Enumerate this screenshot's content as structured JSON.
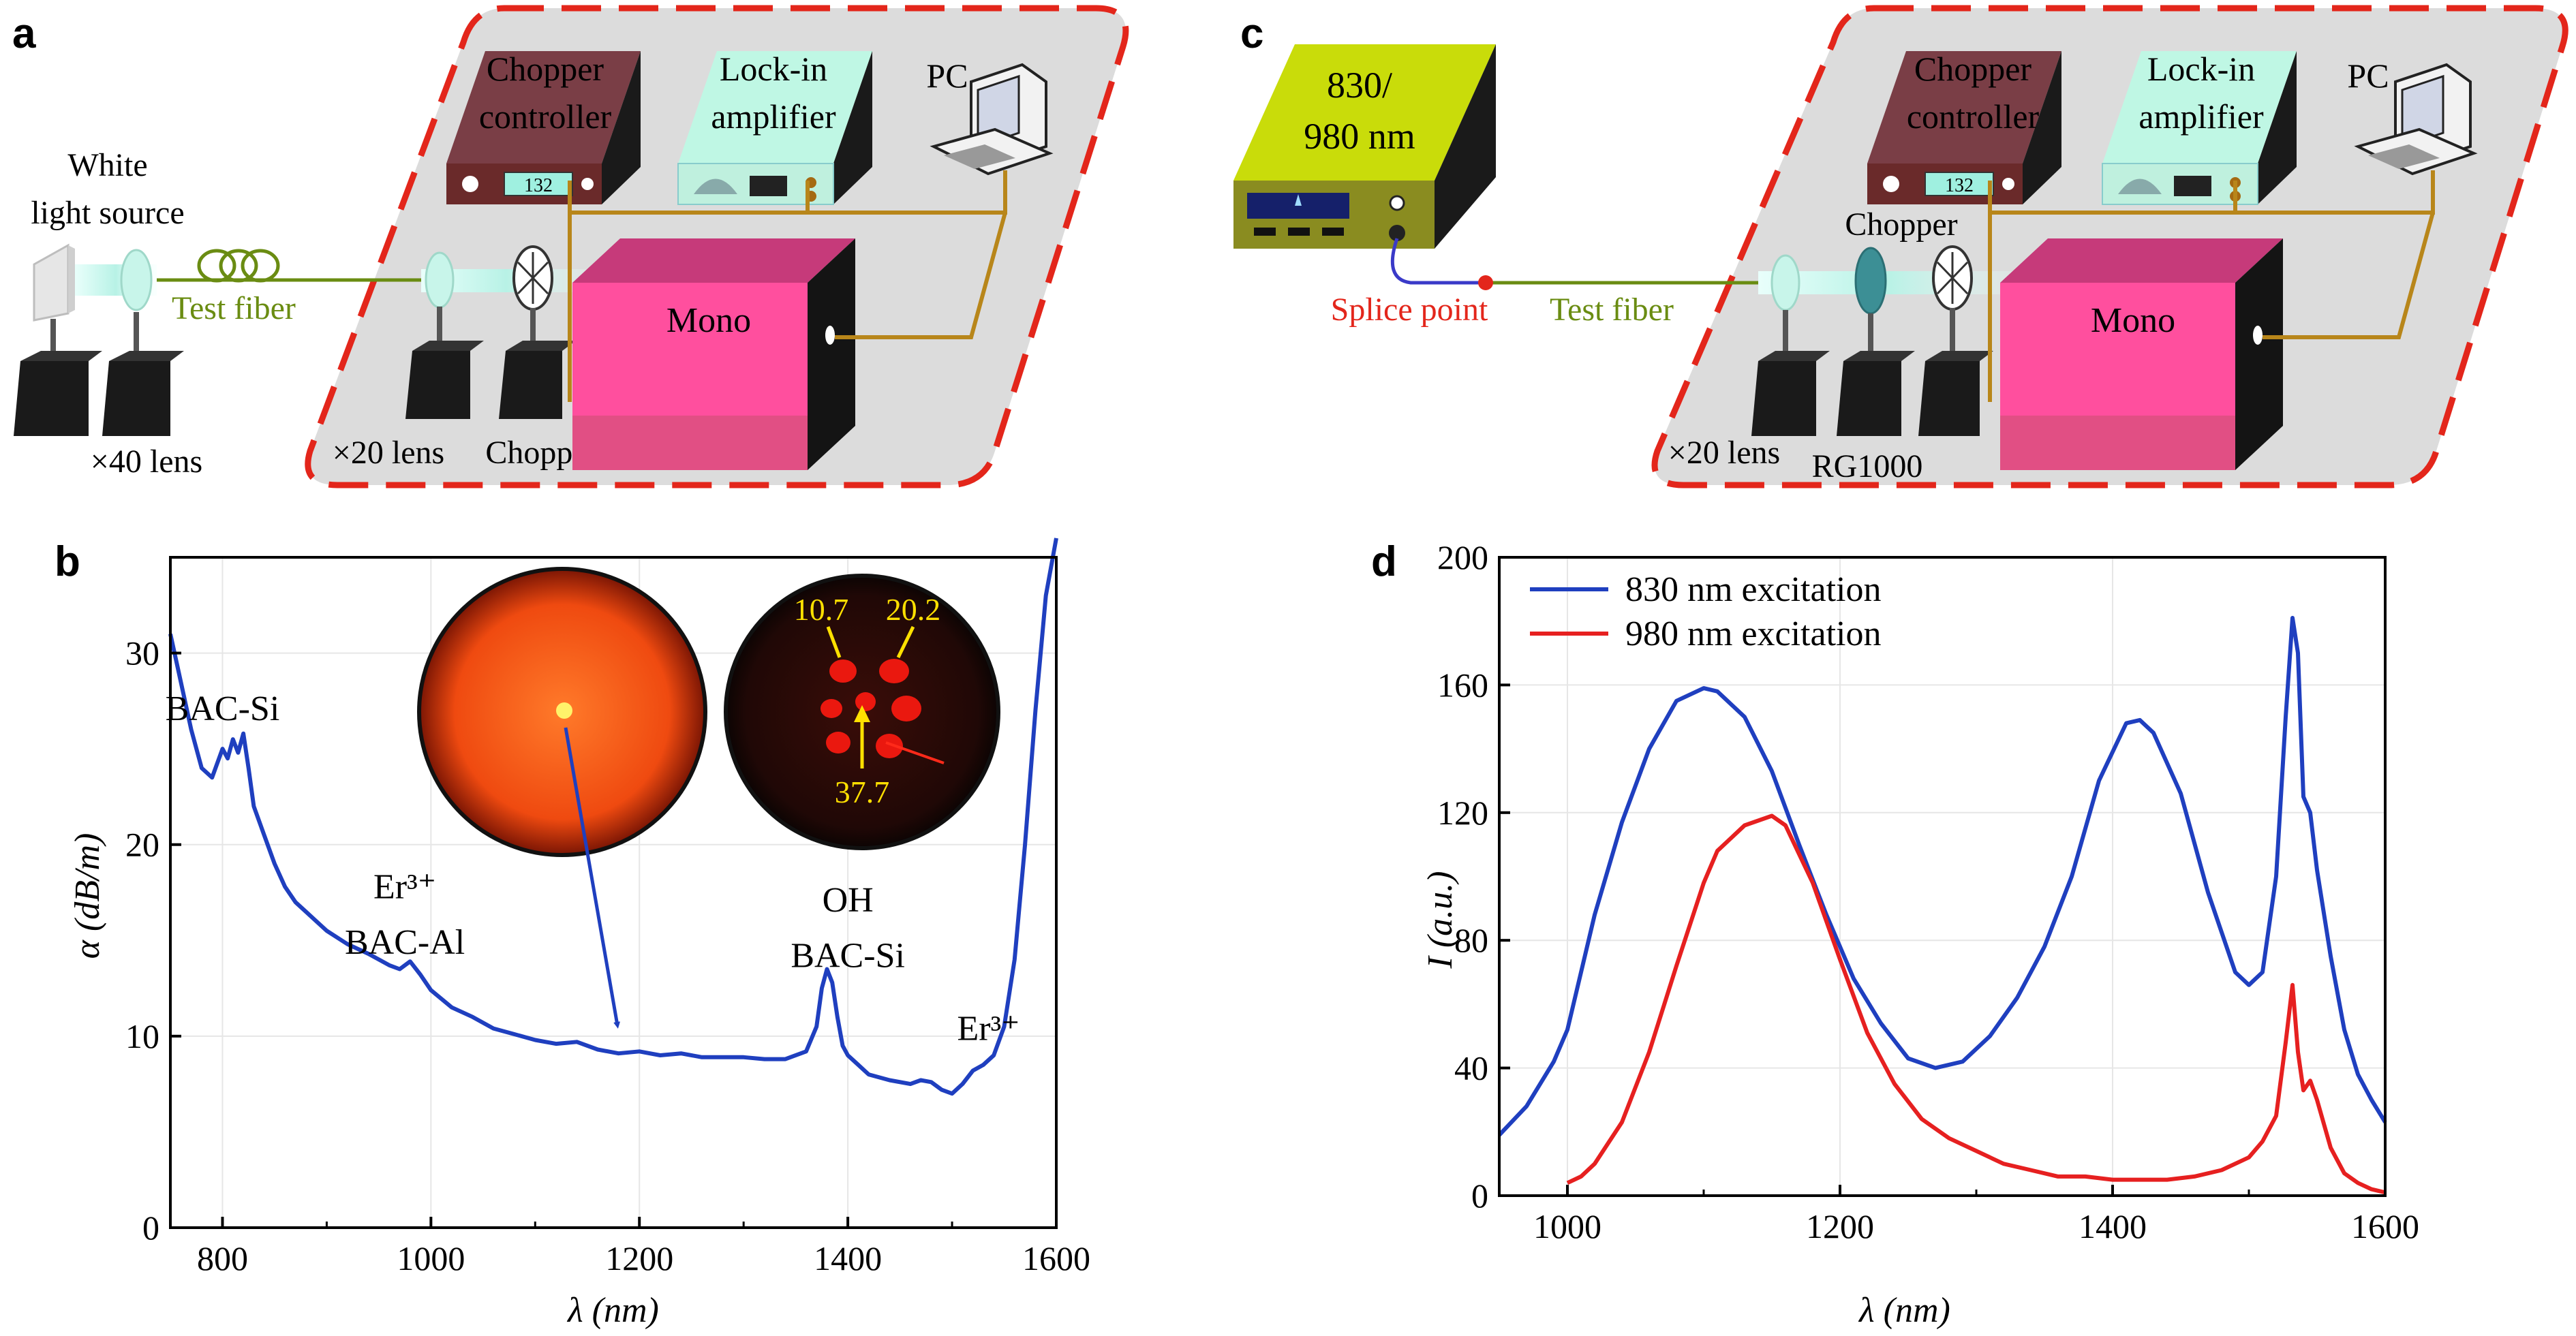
{
  "panels": {
    "a": {
      "letter": "a",
      "white_light_source": [
        "White",
        "light source"
      ],
      "test_fiber": "Test fiber",
      "x40_lens": "×40 lens",
      "x20_lens": "×20 lens",
      "chopper": "Chopper",
      "chopper_controller": [
        "Chopper",
        "controller"
      ],
      "chopper_display": "132",
      "lockin": [
        "Lock-in",
        "amplifier"
      ],
      "pc": "PC",
      "mono": "Mono"
    },
    "c": {
      "letter": "c",
      "source": [
        "830/",
        "980 nm"
      ],
      "splice_point": "Splice point",
      "test_fiber": "Test fiber",
      "x20_lens": "×20 lens",
      "rg1000": "RG1000",
      "chopper": "Chopper",
      "chopper_controller": [
        "Chopper",
        "controller"
      ],
      "chopper_display": "132",
      "lockin": [
        "Lock-in",
        "amplifier"
      ],
      "pc": "PC",
      "mono": "Mono"
    },
    "b": {
      "letter": "b"
    },
    "d": {
      "letter": "d"
    }
  },
  "chart_data": [
    {
      "panel": "b",
      "type": "line",
      "xlabel": "λ (nm)",
      "ylabel": "α (dB/m)",
      "xlim": [
        750,
        1600
      ],
      "ylim": [
        0,
        35
      ],
      "xticks": [
        800,
        1000,
        1200,
        1400,
        1600
      ],
      "yticks": [
        0,
        10,
        20,
        30
      ],
      "grid": true,
      "series": [
        {
          "color": "#1f3fbf",
          "x": [
            750,
            760,
            770,
            780,
            790,
            800,
            805,
            810,
            815,
            820,
            825,
            830,
            840,
            850,
            860,
            870,
            880,
            890,
            900,
            920,
            940,
            960,
            970,
            980,
            990,
            1000,
            1020,
            1040,
            1060,
            1080,
            1100,
            1120,
            1140,
            1160,
            1180,
            1200,
            1220,
            1240,
            1260,
            1280,
            1300,
            1320,
            1340,
            1360,
            1370,
            1375,
            1380,
            1385,
            1390,
            1395,
            1400,
            1410,
            1420,
            1440,
            1460,
            1470,
            1480,
            1490,
            1500,
            1510,
            1520,
            1530,
            1540,
            1550,
            1560,
            1570,
            1580,
            1590,
            1600
          ],
          "y": [
            31,
            28.5,
            26,
            24,
            23.5,
            25,
            24.5,
            25.5,
            24.8,
            25.8,
            24,
            22,
            20.5,
            19,
            17.8,
            17,
            16.5,
            16,
            15.5,
            14.8,
            14.3,
            13.7,
            13.5,
            13.9,
            13.2,
            12.4,
            11.5,
            11,
            10.4,
            10.1,
            9.8,
            9.6,
            9.7,
            9.3,
            9.1,
            9.2,
            9.0,
            9.1,
            8.9,
            8.9,
            8.9,
            8.8,
            8.8,
            9.2,
            10.5,
            12.5,
            13.5,
            12.8,
            11,
            9.5,
            9.0,
            8.5,
            8.0,
            7.7,
            7.5,
            7.7,
            7.6,
            7.2,
            7.0,
            7.5,
            8.2,
            8.5,
            9.0,
            10.5,
            14,
            20,
            27,
            33,
            36
          ]
        }
      ],
      "annotations": [
        {
          "text": "BAC-Si",
          "x": 800,
          "y": 26.5
        },
        {
          "text": "Er³⁺",
          "x": 975,
          "y": 17.2
        },
        {
          "text": "BAC-Al",
          "x": 975,
          "y": 14.3
        },
        {
          "text": "OH",
          "x": 1400,
          "y": 16.5
        },
        {
          "text": "BAC-Si",
          "x": 1400,
          "y": 13.6
        },
        {
          "text": "Er³⁺",
          "x": 1535,
          "y": 9.8
        }
      ],
      "inset_labels": [
        "10.7",
        "20.2",
        "37.7"
      ]
    },
    {
      "panel": "d",
      "type": "line",
      "xlabel": "λ (nm)",
      "ylabel": "I (a.u.)",
      "xlim": [
        950,
        1600
      ],
      "ylim": [
        0,
        200
      ],
      "xticks": [
        1000,
        1200,
        1400,
        1600
      ],
      "yticks": [
        0,
        40,
        80,
        120,
        160,
        200
      ],
      "grid": true,
      "legend": "top-left",
      "series": [
        {
          "name": "830 nm excitation",
          "color": "#1f3fbf",
          "x": [
            950,
            970,
            990,
            1000,
            1020,
            1040,
            1060,
            1080,
            1100,
            1110,
            1130,
            1150,
            1170,
            1190,
            1210,
            1230,
            1250,
            1270,
            1290,
            1310,
            1330,
            1350,
            1370,
            1390,
            1410,
            1420,
            1430,
            1450,
            1470,
            1490,
            1500,
            1510,
            1520,
            1527,
            1532,
            1536,
            1540,
            1545,
            1550,
            1560,
            1570,
            1580,
            1590,
            1600
          ],
          "y": [
            19,
            28,
            42,
            52,
            88,
            117,
            140,
            155,
            159,
            158,
            150,
            133,
            110,
            88,
            68,
            54,
            43,
            40,
            42,
            50,
            62,
            78,
            100,
            130,
            148,
            149,
            145,
            126,
            95,
            70,
            66,
            70,
            100,
            150,
            181,
            170,
            125,
            120,
            102,
            75,
            52,
            38,
            30,
            23
          ]
        },
        {
          "name": "980 nm excitation",
          "color": "#e62020",
          "x": [
            1000,
            1010,
            1020,
            1040,
            1060,
            1080,
            1100,
            1110,
            1130,
            1150,
            1160,
            1180,
            1200,
            1220,
            1240,
            1260,
            1280,
            1300,
            1320,
            1340,
            1360,
            1380,
            1400,
            1420,
            1440,
            1460,
            1480,
            1500,
            1510,
            1520,
            1527,
            1532,
            1536,
            1540,
            1545,
            1550,
            1560,
            1570,
            1580,
            1590,
            1600
          ],
          "y": [
            4,
            6,
            10,
            23,
            45,
            72,
            98,
            108,
            116,
            119,
            116,
            98,
            74,
            51,
            35,
            24,
            18,
            14,
            10,
            8,
            6,
            6,
            5,
            5,
            5,
            6,
            8,
            12,
            17,
            25,
            48,
            66,
            45,
            33,
            36,
            30,
            15,
            7,
            4,
            2,
            1
          ]
        }
      ]
    }
  ]
}
